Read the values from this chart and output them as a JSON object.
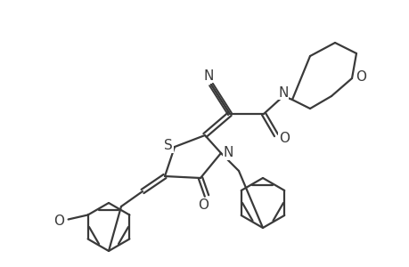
{
  "background": "#ffffff",
  "line_color": "#3a3a3a",
  "line_width": 1.6,
  "font_size": 10,
  "S_label": "S",
  "N_label": "N",
  "O_label": "O",
  "CN_label": "N",
  "OMe_label": "O",
  "OMe_text": "O"
}
